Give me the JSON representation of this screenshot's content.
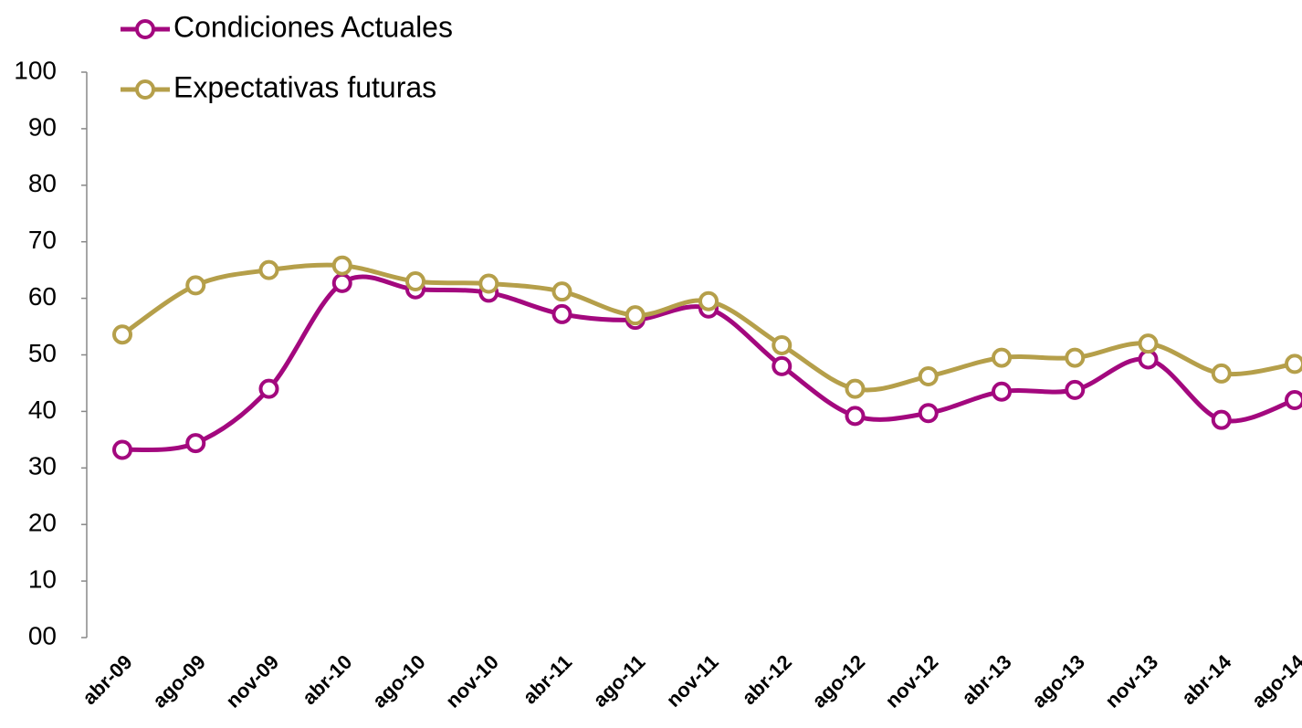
{
  "chart_data": {
    "type": "line",
    "categories": [
      "abr-09",
      "ago-09",
      "nov-09",
      "abr-10",
      "ago-10",
      "nov-10",
      "abr-11",
      "ago-11",
      "nov-11",
      "abr-12",
      "ago-12",
      "nov-12",
      "abr-13",
      "ago-13",
      "nov-13",
      "abr-14",
      "ago-14"
    ],
    "series": [
      {
        "name": "Condiciones Actuales",
        "color": "#a3087e",
        "values": [
          33.2,
          34.4,
          44,
          62.7,
          61.6,
          61,
          57.2,
          56.2,
          58.2,
          48,
          39.2,
          39.7,
          43.5,
          43.8,
          49.2,
          38.5,
          42
        ]
      },
      {
        "name": "Expectativas futuras",
        "color": "#b59f4a",
        "values": [
          53.6,
          62.3,
          65,
          65.8,
          63,
          62.6,
          61.2,
          57,
          59.5,
          51.7,
          44,
          46.2,
          49.5,
          49.5,
          52,
          46.7,
          48.4
        ]
      }
    ],
    "ylim": [
      0,
      100
    ],
    "yticks": [
      {
        "value": 0,
        "label": "00"
      },
      10,
      20,
      30,
      40,
      50,
      60,
      70,
      80,
      90,
      100
    ],
    "legend": "top-left",
    "smooth": true
  }
}
